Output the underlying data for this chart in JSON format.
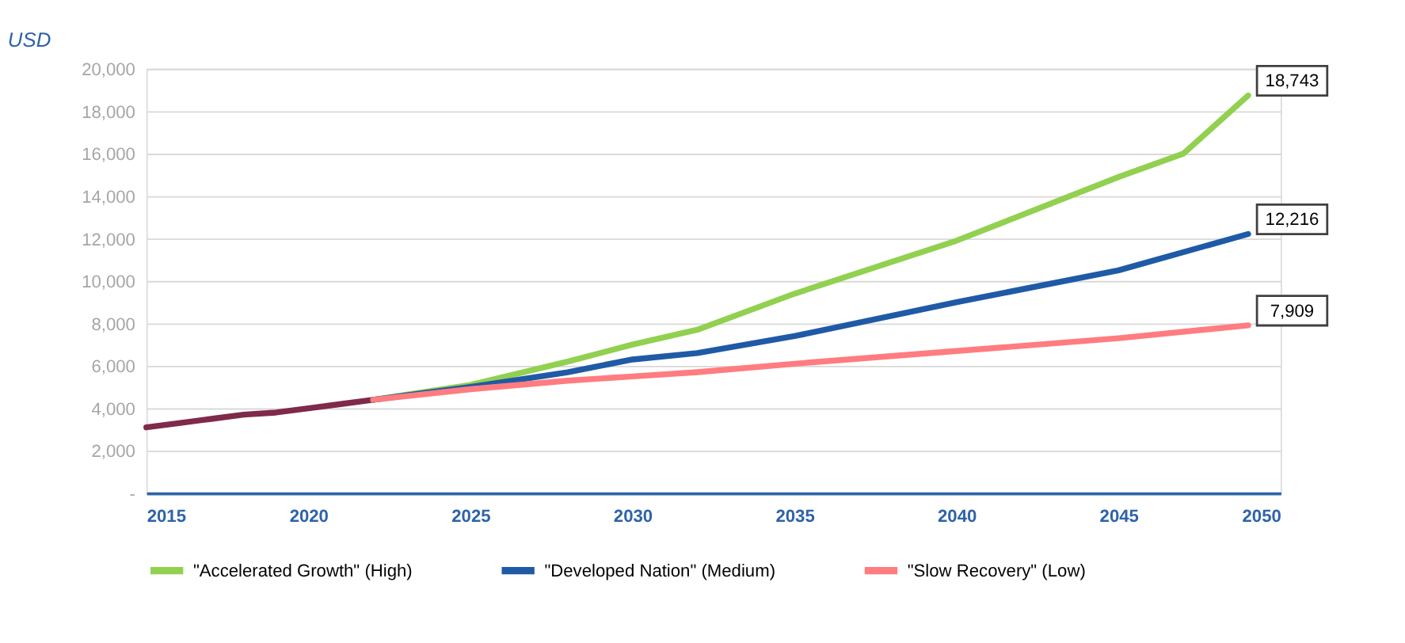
{
  "chart_data": {
    "type": "line",
    "ylabel": "USD",
    "xlim": [
      2015,
      2050
    ],
    "xticks": [
      2015,
      2020,
      2025,
      2030,
      2035,
      2040,
      2045,
      2050
    ],
    "ylim": [
      0,
      20000
    ],
    "yticks": [
      {
        "value": 0,
        "label": "-"
      },
      {
        "value": 2000,
        "label": "2,000"
      },
      {
        "value": 4000,
        "label": "4,000"
      },
      {
        "value": 6000,
        "label": "6,000"
      },
      {
        "value": 8000,
        "label": "8,000"
      },
      {
        "value": 10000,
        "label": "10,000"
      },
      {
        "value": 12000,
        "label": "12,000"
      },
      {
        "value": 14000,
        "label": "14,000"
      },
      {
        "value": 16000,
        "label": "16,000"
      },
      {
        "value": 18000,
        "label": "18,000"
      },
      {
        "value": 20000,
        "label": "20,000"
      }
    ],
    "grid": "y",
    "legend": "bottom",
    "line_style": "solid",
    "marker": "none",
    "series": [
      {
        "color": "#7f2a4a",
        "x": [
          2015,
          2016,
          2017,
          2018,
          2019,
          2020,
          2021,
          2022
        ],
        "values": [
          3100,
          3300,
          3500,
          3700,
          3800,
          4000,
          4200,
          4400
        ]
      },
      {
        "name": "\"Accelerated Growth\" (High)",
        "color": "#92d050",
        "x": [
          2022,
          2025,
          2028,
          2030,
          2032,
          2035,
          2040,
          2045,
          2047,
          2049
        ],
        "values": [
          4400,
          5100,
          6200,
          7000,
          7700,
          9400,
          11900,
          14900,
          16000,
          18743
        ],
        "value_labels": [
          null,
          null,
          null,
          null,
          null,
          null,
          null,
          null,
          null,
          "18,743"
        ]
      },
      {
        "name": "\"Developed Nation\" (Medium)",
        "color": "#1f5aa6",
        "x": [
          2022,
          2025,
          2028,
          2030,
          2032,
          2035,
          2040,
          2045,
          2049
        ],
        "values": [
          4400,
          5000,
          5700,
          6300,
          6600,
          7400,
          9000,
          10500,
          12216
        ],
        "value_labels": [
          null,
          null,
          null,
          null,
          null,
          null,
          null,
          null,
          "12,216"
        ]
      },
      {
        "name": "\"Slow Recovery\" (Low)",
        "color": "#ff7c80",
        "x": [
          2022,
          2025,
          2028,
          2030,
          2032,
          2035,
          2040,
          2045,
          2049
        ],
        "values": [
          4400,
          4900,
          5300,
          5500,
          5700,
          6100,
          6700,
          7300,
          7909
        ],
        "value_labels": [
          null,
          null,
          null,
          null,
          null,
          null,
          null,
          null,
          "7,909"
        ]
      }
    ]
  }
}
